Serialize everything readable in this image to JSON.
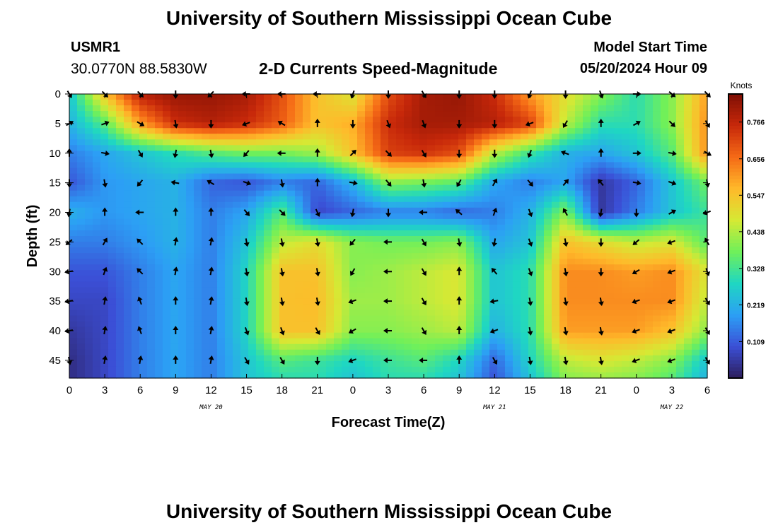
{
  "header": {
    "title": "University of Southern Mississippi Ocean Cube",
    "station_id": "USMR1",
    "coordinates": "30.0770N  88.5830W",
    "subtitle": "2-D Currents Speed-Magnitude",
    "model_start_label": "Model Start Time",
    "model_start_value": "05/20/2024 Hour 09"
  },
  "footer": {
    "title": "University of Southern Mississippi Ocean Cube"
  },
  "chart_data": {
    "type": "heatmap",
    "title": "2-D Currents Speed-Magnitude",
    "xlabel": "Forecast Time(Z)",
    "ylabel": "Depth (ft)",
    "x_tick_labels": [
      "0",
      "3",
      "6",
      "9",
      "12",
      "15",
      "18",
      "21",
      "0",
      "3",
      "6",
      "9",
      "12",
      "15",
      "18",
      "21",
      "0",
      "3",
      "6"
    ],
    "x_hours": [
      0,
      3,
      6,
      9,
      12,
      15,
      18,
      21,
      24,
      27,
      30,
      33,
      36,
      39,
      42,
      45,
      48,
      51,
      54
    ],
    "xlim": [
      0,
      54
    ],
    "date_labels": [
      {
        "text": "MAY 20",
        "hour": 12
      },
      {
        "text": "MAY 21",
        "hour": 36
      },
      {
        "text": "MAY 22",
        "hour": 51
      }
    ],
    "y_ticks": [
      0,
      5,
      10,
      15,
      20,
      25,
      30,
      35,
      40,
      45
    ],
    "ylim": [
      0,
      48
    ],
    "colorbar": {
      "label": "Knots",
      "ticks": [
        "0.109",
        "0.219",
        "0.328",
        "0.438",
        "0.547",
        "0.656",
        "0.766"
      ],
      "tick_values": [
        0.109,
        0.219,
        0.328,
        0.438,
        0.547,
        0.656,
        0.766
      ],
      "range": [
        0.0,
        0.85
      ],
      "colors": [
        "#2d1e5c",
        "#3b4fd6",
        "#2c9ff5",
        "#1fd7c2",
        "#6ff05a",
        "#d6e934",
        "#ffb92a",
        "#f56a16",
        "#c7280a",
        "#7e0f04"
      ]
    },
    "speed_grid": {
      "description": "current speed in knots at depth rows (ft) vs forecast hour columns",
      "depths": [
        0,
        5,
        10,
        15,
        20,
        25,
        30,
        35,
        40,
        45,
        48
      ],
      "hours": [
        0,
        3,
        6,
        9,
        12,
        15,
        18,
        21,
        24,
        27,
        30,
        33,
        36,
        39,
        42,
        45,
        48,
        51,
        54
      ],
      "values": [
        [
          0.25,
          0.55,
          0.78,
          0.82,
          0.82,
          0.8,
          0.7,
          0.55,
          0.48,
          0.7,
          0.8,
          0.82,
          0.75,
          0.6,
          0.5,
          0.4,
          0.3,
          0.4,
          0.6
        ],
        [
          0.22,
          0.35,
          0.6,
          0.75,
          0.78,
          0.75,
          0.68,
          0.55,
          0.58,
          0.75,
          0.8,
          0.8,
          0.78,
          0.72,
          0.45,
          0.3,
          0.3,
          0.4,
          0.62
        ],
        [
          0.15,
          0.2,
          0.25,
          0.3,
          0.35,
          0.38,
          0.38,
          0.42,
          0.55,
          0.72,
          0.74,
          0.7,
          0.45,
          0.32,
          0.22,
          0.2,
          0.25,
          0.35,
          0.62
        ],
        [
          0.1,
          0.18,
          0.2,
          0.22,
          0.12,
          0.1,
          0.15,
          0.12,
          0.22,
          0.4,
          0.38,
          0.35,
          0.2,
          0.15,
          0.2,
          0.05,
          0.12,
          0.25,
          0.38
        ],
        [
          0.22,
          0.18,
          0.2,
          0.22,
          0.15,
          0.2,
          0.35,
          0.08,
          0.12,
          0.15,
          0.15,
          0.12,
          0.15,
          0.22,
          0.4,
          0.05,
          0.15,
          0.25,
          0.32
        ],
        [
          0.15,
          0.15,
          0.18,
          0.22,
          0.15,
          0.25,
          0.45,
          0.5,
          0.4,
          0.38,
          0.38,
          0.4,
          0.2,
          0.25,
          0.55,
          0.5,
          0.45,
          0.48,
          0.35
        ],
        [
          0.1,
          0.1,
          0.15,
          0.2,
          0.15,
          0.28,
          0.55,
          0.55,
          0.4,
          0.42,
          0.45,
          0.48,
          0.25,
          0.3,
          0.62,
          0.62,
          0.6,
          0.62,
          0.48
        ],
        [
          0.08,
          0.08,
          0.15,
          0.2,
          0.15,
          0.28,
          0.55,
          0.56,
          0.42,
          0.42,
          0.45,
          0.48,
          0.25,
          0.3,
          0.62,
          0.62,
          0.62,
          0.62,
          0.45
        ],
        [
          0.05,
          0.08,
          0.15,
          0.2,
          0.15,
          0.28,
          0.55,
          0.55,
          0.4,
          0.4,
          0.42,
          0.45,
          0.22,
          0.3,
          0.6,
          0.6,
          0.6,
          0.55,
          0.4
        ],
        [
          0.03,
          0.08,
          0.15,
          0.2,
          0.15,
          0.25,
          0.35,
          0.32,
          0.28,
          0.32,
          0.35,
          0.28,
          0.12,
          0.28,
          0.45,
          0.48,
          0.45,
          0.4,
          0.25
        ],
        [
          0.03,
          0.08,
          0.15,
          0.2,
          0.15,
          0.25,
          0.3,
          0.3,
          0.25,
          0.3,
          0.3,
          0.25,
          0.1,
          0.25,
          0.4,
          0.42,
          0.4,
          0.35,
          0.22
        ]
      ]
    },
    "vectors": {
      "description": "current direction arrows (degrees, 0 = north/up, clockwise) at depth rows vs hour columns",
      "depths": [
        0,
        5,
        10,
        15,
        20,
        25,
        30,
        35,
        40,
        45
      ],
      "hours": [
        0,
        3,
        6,
        9,
        12,
        15,
        18,
        21,
        24,
        27,
        30,
        33,
        36,
        39,
        42,
        45,
        48,
        51,
        54
      ],
      "directions": [
        [
          150,
          135,
          135,
          180,
          225,
          270,
          270,
          270,
          200,
          180,
          150,
          180,
          180,
          200,
          180,
          160,
          90,
          130,
          135
        ],
        [
          60,
          70,
          120,
          170,
          180,
          250,
          300,
          0,
          180,
          160,
          160,
          180,
          180,
          250,
          210,
          0,
          60,
          135,
          150
        ],
        [
          0,
          100,
          150,
          190,
          170,
          220,
          270,
          0,
          45,
          135,
          150,
          180,
          180,
          200,
          290,
          0,
          90,
          100,
          120
        ],
        [
          180,
          170,
          220,
          280,
          300,
          110,
          170,
          0,
          100,
          140,
          170,
          210,
          30,
          140,
          40,
          320,
          100,
          110,
          170
        ],
        [
          190,
          0,
          270,
          0,
          0,
          140,
          135,
          155,
          190,
          180,
          270,
          310,
          20,
          160,
          330,
          190,
          180,
          60,
          250
        ],
        [
          230,
          30,
          315,
          10,
          10,
          170,
          170,
          170,
          220,
          270,
          150,
          170,
          190,
          160,
          170,
          180,
          230,
          250,
          330
        ],
        [
          260,
          20,
          315,
          10,
          10,
          170,
          170,
          170,
          210,
          270,
          150,
          0,
          320,
          160,
          170,
          180,
          240,
          250,
          160
        ],
        [
          260,
          10,
          340,
          0,
          10,
          170,
          170,
          170,
          250,
          270,
          150,
          0,
          260,
          170,
          170,
          170,
          250,
          250,
          150
        ],
        [
          260,
          10,
          340,
          0,
          10,
          160,
          160,
          150,
          240,
          270,
          150,
          0,
          250,
          170,
          170,
          170,
          250,
          250,
          150
        ],
        [
          170,
          10,
          10,
          0,
          10,
          150,
          150,
          180,
          250,
          270,
          270,
          0,
          150,
          170,
          170,
          170,
          250,
          250,
          150
        ]
      ]
    }
  }
}
